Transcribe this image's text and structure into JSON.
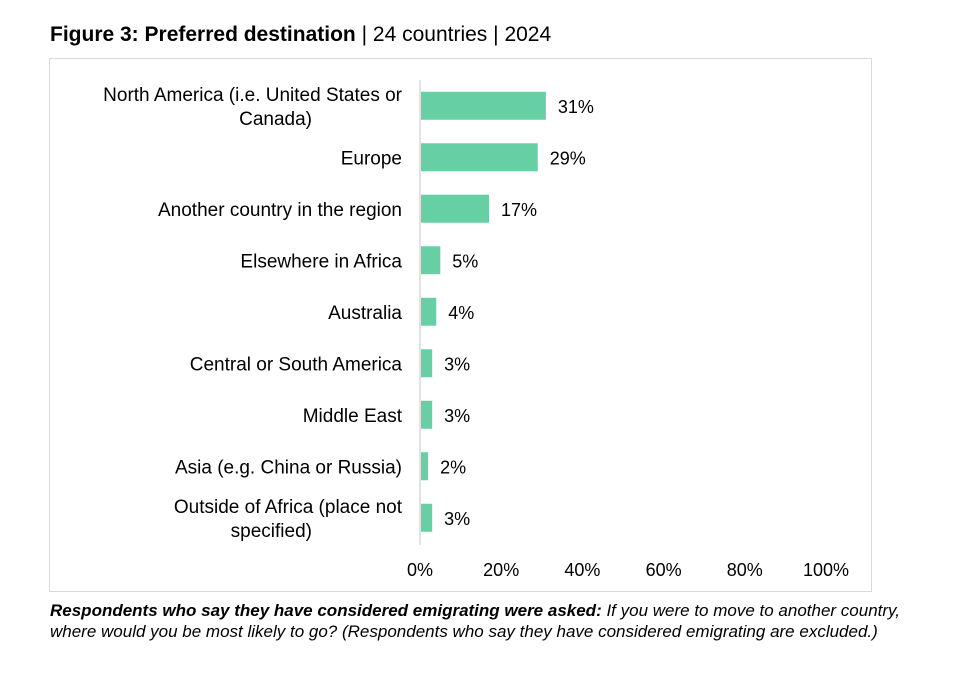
{
  "title": {
    "bold": "Figure 3: Preferred destination",
    "countries": "24 countries",
    "year": "2024",
    "separator": "|"
  },
  "chart_data": {
    "type": "bar",
    "orientation": "horizontal",
    "categories": [
      [
        "North America (i.e. United States or",
        "Canada)"
      ],
      [
        "Europe"
      ],
      [
        "Another country in the region"
      ],
      [
        "Elsewhere in Africa"
      ],
      [
        "Australia"
      ],
      [
        "Central or South America"
      ],
      [
        "Middle East"
      ],
      [
        "Asia (e.g. China or Russia)"
      ],
      [
        "Outside of Africa (place not",
        "specified)"
      ]
    ],
    "values": [
      31,
      29,
      17,
      5,
      4,
      3,
      3,
      2,
      3
    ],
    "value_labels": [
      "31%",
      "29%",
      "17%",
      "5%",
      "4%",
      "3%",
      "3%",
      "2%",
      "3%"
    ],
    "xlim": [
      0,
      100
    ],
    "xticks": [
      0,
      20,
      40,
      60,
      80,
      100
    ],
    "xtick_labels": [
      "0%",
      "20%",
      "40%",
      "60%",
      "80%",
      "100%"
    ],
    "bar_color": "#66cfa3",
    "axis_color": "#d9d9d9",
    "grid": false
  },
  "footnote": {
    "lead": "Respondents who say they have considered emigrating were asked:",
    "question": " If you were to move to another country, where would you be most likely to go? (Respondents who say they have considered emigrating are excluded.)"
  }
}
